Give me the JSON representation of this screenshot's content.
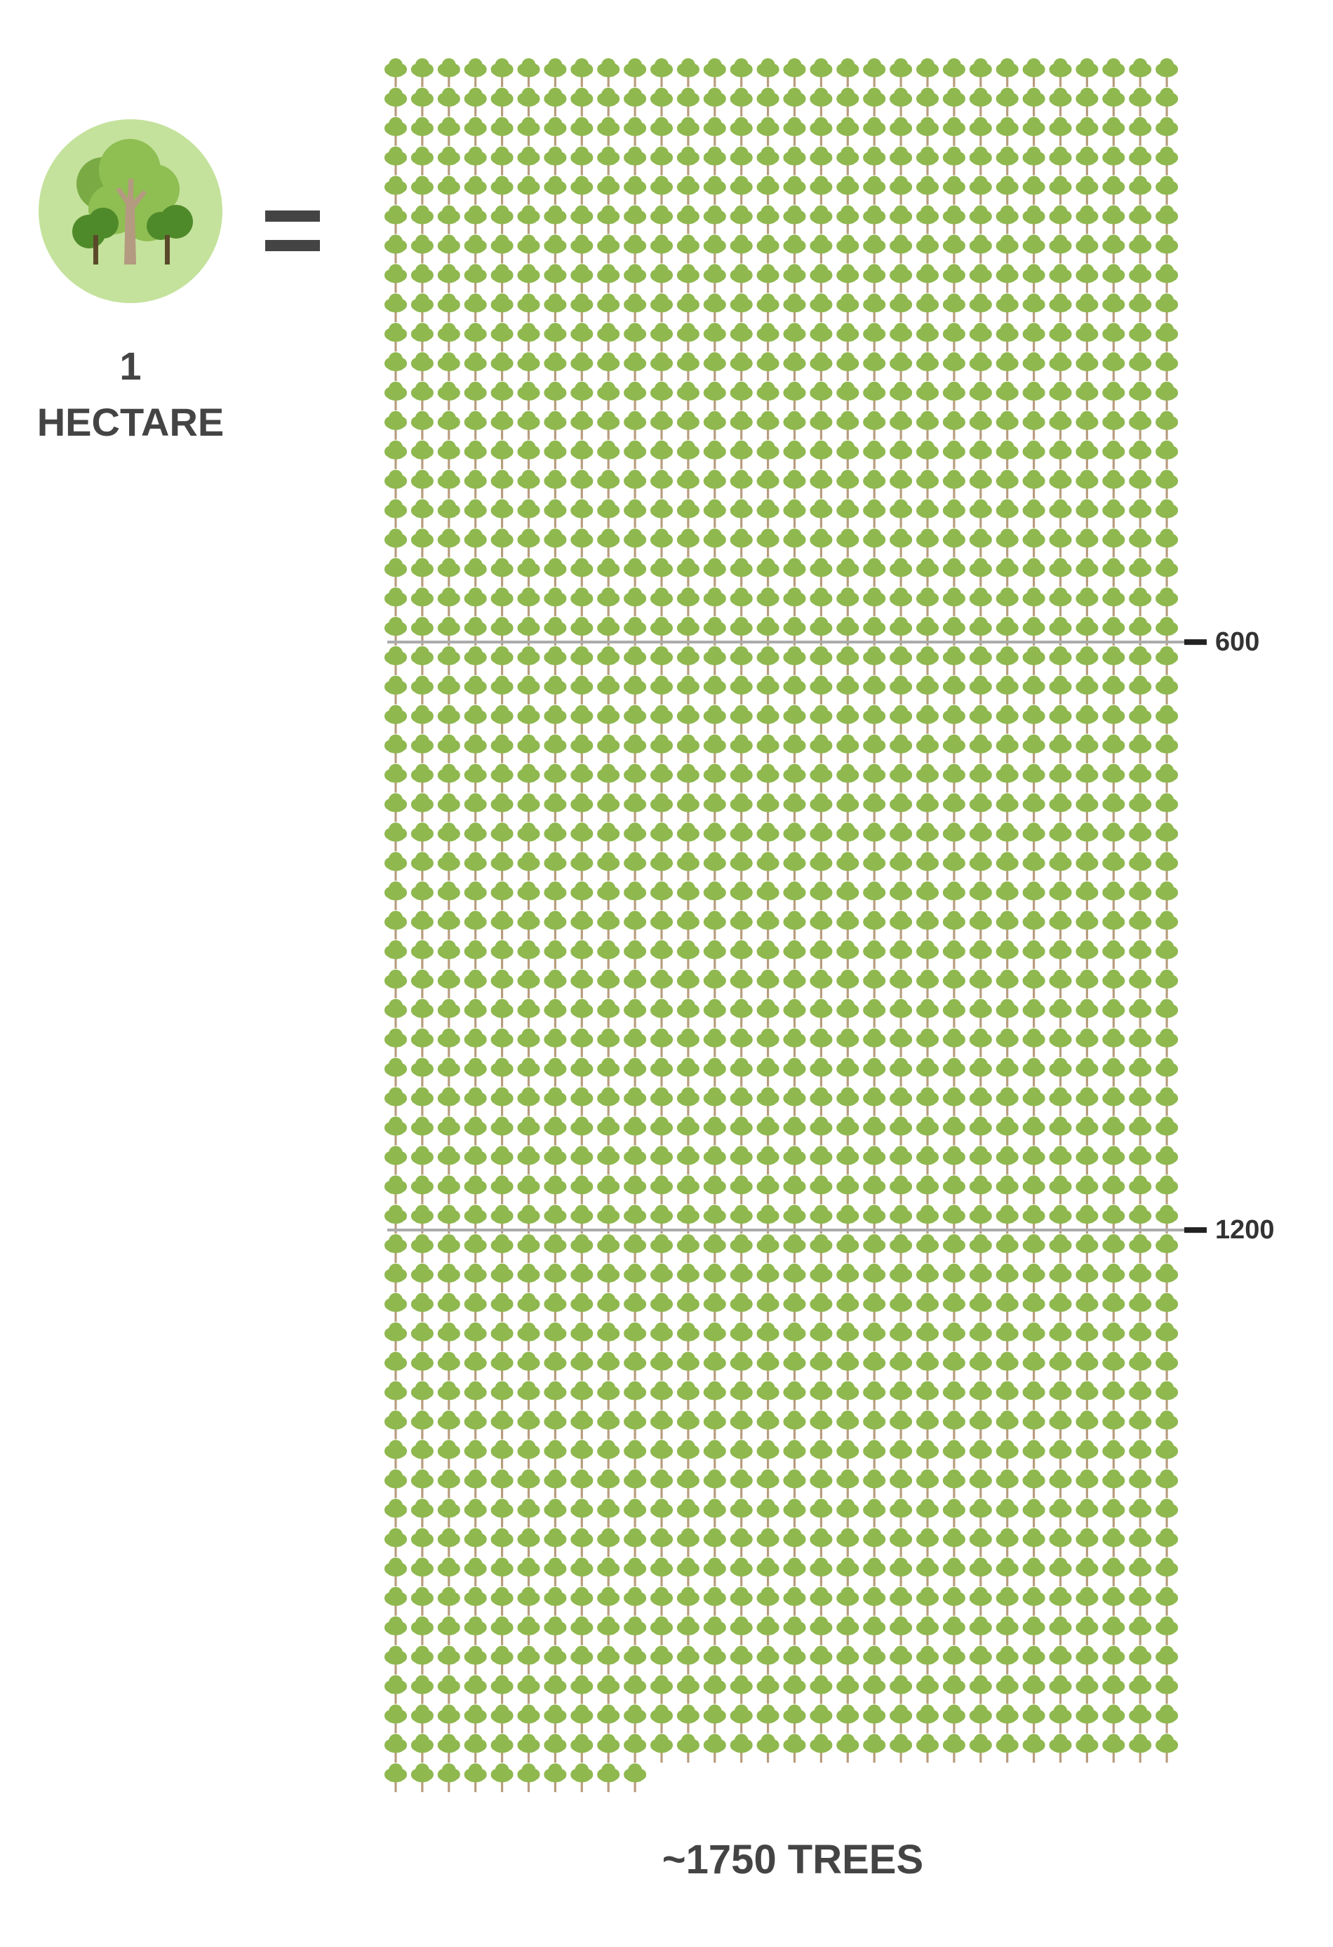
{
  "hectare": {
    "number": "1",
    "unit": "HECTARE",
    "equals": "="
  },
  "colors": {
    "tree_crown": "#8fb84f",
    "tree_trunk": "#b89c7e",
    "icon_circle": "#c4e29c",
    "icon_light_green": "#8fbe52",
    "icon_mid_green": "#7aaa44",
    "icon_dark_green": "#4f8a2a",
    "icon_trunk": "#b49a80",
    "marker_line": "#aaaaaa",
    "marker_tick": "#222222",
    "text": "#444444"
  },
  "chart_data": {
    "type": "pictogram",
    "unit_icon": "tree-icon",
    "columns": 30,
    "total": 1750,
    "total_label": "~1750 TREES",
    "markers": [
      {
        "value": 600,
        "label": "600"
      },
      {
        "value": 1200,
        "label": "1200"
      }
    ]
  }
}
